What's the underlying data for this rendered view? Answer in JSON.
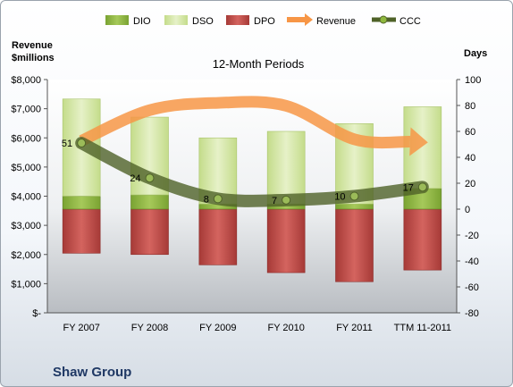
{
  "chart_data": {
    "type": "bar",
    "title": "12-Month Periods",
    "company": "Shaw Group",
    "left_axis": {
      "title_line1": "Revenue",
      "title_line2": "$millions",
      "ylim": [
        0,
        8000
      ],
      "ticks": [
        0,
        1000,
        2000,
        3000,
        4000,
        5000,
        6000,
        7000,
        8000
      ],
      "tick_labels": [
        "$-",
        "$1,000",
        "$2,000",
        "$3,000",
        "$4,000",
        "$5,000",
        "$6,000",
        "$7,000",
        "$8,000"
      ]
    },
    "right_axis": {
      "title": "Days",
      "ylim": [
        -80,
        100
      ],
      "ticks": [
        -80,
        -60,
        -40,
        -20,
        0,
        20,
        40,
        60,
        80,
        100
      ],
      "tick_labels": [
        "-80",
        "-60",
        "-40",
        "-20",
        "0",
        "20",
        "40",
        "60",
        "80",
        "100"
      ]
    },
    "categories": [
      "FY 2007",
      "FY 2008",
      "FY 2009",
      "FY 2010",
      "FY 2011",
      "TTM 11-2011"
    ],
    "legend": [
      "DIO",
      "DSO",
      "DPO",
      "Revenue",
      "CCC"
    ],
    "legend_position": "top",
    "series": [
      {
        "name": "DIO",
        "axis": "days",
        "values": [
          10,
          11,
          4,
          4,
          4,
          16
        ]
      },
      {
        "name": "DSO",
        "axis": "days",
        "values": [
          75,
          60,
          51,
          56,
          62,
          63
        ]
      },
      {
        "name": "DPO",
        "axis": "days",
        "values": [
          -34,
          -35,
          -43,
          -49,
          -56,
          -47
        ]
      },
      {
        "name": "Revenue",
        "axis": "revenue",
        "values": [
          5900,
          6950,
          7200,
          7100,
          5950,
          5850
        ]
      },
      {
        "name": "CCC",
        "axis": "days",
        "values": [
          51,
          24,
          8,
          7,
          10,
          17
        ],
        "labels": [
          "51",
          "24",
          "8",
          "7",
          "10",
          "17"
        ]
      }
    ],
    "colors": {
      "DIO": "#8fb83e",
      "DSO": "#d4e6a5",
      "DPO": "#c0504d",
      "Revenue": "#f79646",
      "CCC": "#4f6228",
      "company": "#1f3864"
    }
  }
}
